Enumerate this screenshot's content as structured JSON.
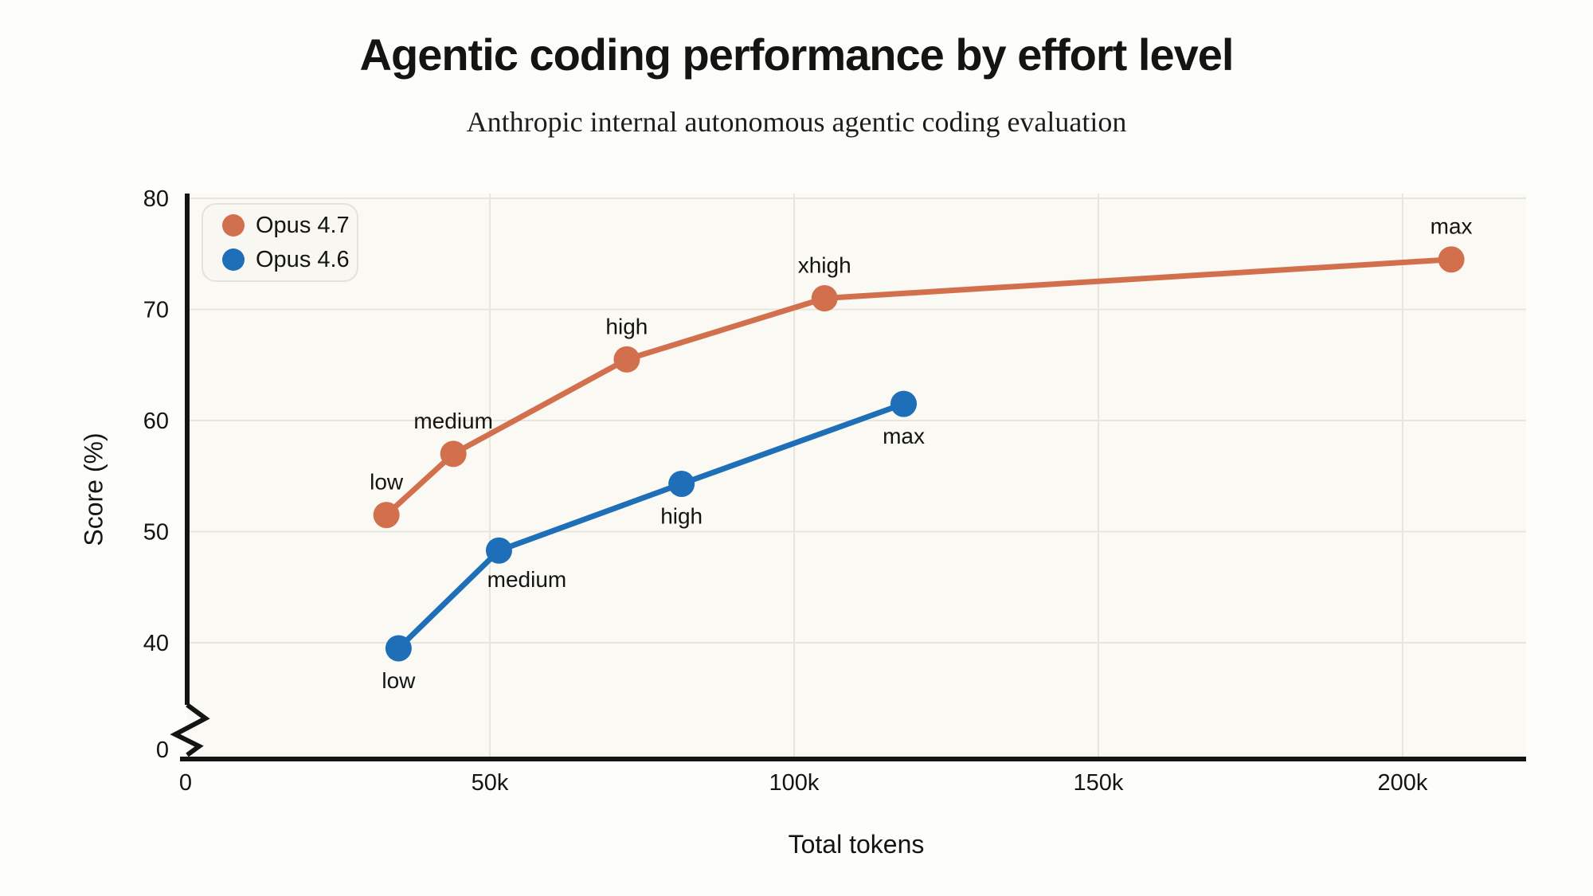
{
  "title": "Agentic coding performance by effort level",
  "subtitle": "Anthropic internal autonomous agentic coding evaluation",
  "axis": {
    "x_title": "Total tokens",
    "y_title": "Score (%)"
  },
  "legend": {
    "position": "top-left-inside",
    "items": [
      {
        "label": "Opus 4.7",
        "color": "#D2704E"
      },
      {
        "label": "Opus 4.6",
        "color": "#1F6FB8"
      }
    ]
  },
  "colors": {
    "background": "#FDFDFB",
    "plot_background": "#FAF9F4",
    "gridline": "#E8E5DD",
    "axis": "#141413",
    "text": "#141413",
    "opus_47": "#D2704E",
    "opus_46": "#1F6FB8"
  },
  "chart_data": {
    "type": "line",
    "title": "Agentic coding performance by effort level",
    "subtitle": "Anthropic internal autonomous agentic coding evaluation",
    "xlabel": "Total tokens",
    "ylabel": "Score (%)",
    "xlim": [
      0,
      220000
    ],
    "ylim": [
      0,
      80
    ],
    "y_axis_break_between": [
      0,
      40
    ],
    "grid": true,
    "legend_position": "top-left-inside",
    "x_ticks": [
      {
        "value": 0,
        "label": "0"
      },
      {
        "value": 50000,
        "label": "50k"
      },
      {
        "value": 100000,
        "label": "100k"
      },
      {
        "value": 150000,
        "label": "150k"
      },
      {
        "value": 200000,
        "label": "200k"
      }
    ],
    "y_ticks": [
      {
        "value": 80,
        "label": "80"
      },
      {
        "value": 70,
        "label": "70"
      },
      {
        "value": 60,
        "label": "60"
      },
      {
        "value": 50,
        "label": "50"
      },
      {
        "value": 40,
        "label": "40"
      },
      {
        "value": 0,
        "label": "0"
      }
    ],
    "series": [
      {
        "name": "Opus 4.7",
        "color": "#D2704E",
        "points": [
          {
            "effort": "low",
            "tokens": 33000,
            "score": 51.5,
            "label_side": "above"
          },
          {
            "effort": "medium",
            "tokens": 44000,
            "score": 57,
            "label_side": "above"
          },
          {
            "effort": "high",
            "tokens": 72500,
            "score": 65.5,
            "label_side": "above"
          },
          {
            "effort": "xhigh",
            "tokens": 105000,
            "score": 71,
            "label_side": "above"
          },
          {
            "effort": "max",
            "tokens": 208000,
            "score": 74.5,
            "label_side": "above"
          }
        ]
      },
      {
        "name": "Opus 4.6",
        "color": "#1F6FB8",
        "points": [
          {
            "effort": "low",
            "tokens": 35000,
            "score": 39.5,
            "label_side": "below"
          },
          {
            "effort": "medium",
            "tokens": 51500,
            "score": 48.3,
            "label_side": "below-right"
          },
          {
            "effort": "high",
            "tokens": 81500,
            "score": 54.3,
            "label_side": "below"
          },
          {
            "effort": "max",
            "tokens": 118000,
            "score": 61.5,
            "label_side": "below"
          }
        ]
      }
    ]
  }
}
